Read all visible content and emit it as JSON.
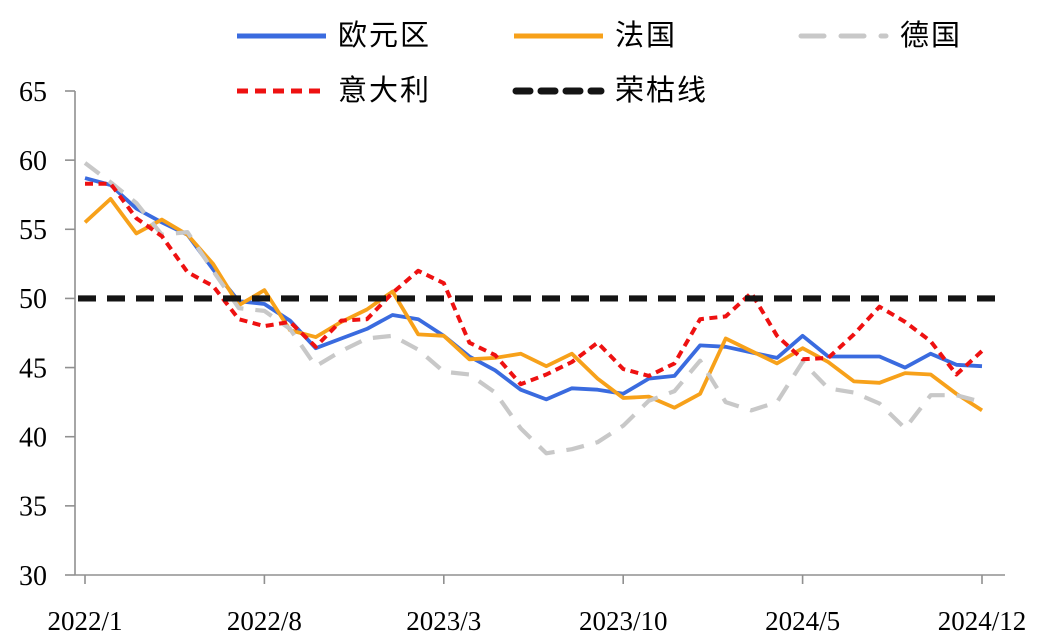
{
  "figure": {
    "background": "#ffffff",
    "axis_color": "#909090",
    "text_color": "#000000"
  },
  "chart_data": {
    "type": "line",
    "title": "",
    "xlabel": "",
    "ylabel": "",
    "grid": false,
    "legend_position": "top",
    "ylim": [
      30,
      65
    ],
    "y_ticks": [
      30,
      35,
      40,
      45,
      50,
      55,
      60,
      65
    ],
    "x_tick_labels": [
      "2022/1",
      "2022/8",
      "2023/3",
      "2023/10",
      "2024/5",
      "2024/12"
    ],
    "x_tick_month_indices": [
      0,
      7,
      14,
      21,
      28,
      35
    ],
    "x_months": [
      "2022/1",
      "2022/2",
      "2022/3",
      "2022/4",
      "2022/5",
      "2022/6",
      "2022/7",
      "2022/8",
      "2022/9",
      "2022/10",
      "2022/11",
      "2022/12",
      "2023/1",
      "2023/2",
      "2023/3",
      "2023/4",
      "2023/5",
      "2023/6",
      "2023/7",
      "2023/8",
      "2023/9",
      "2023/10",
      "2023/11",
      "2023/12",
      "2024/1",
      "2024/2",
      "2024/3",
      "2024/4",
      "2024/5",
      "2024/6",
      "2024/7",
      "2024/8",
      "2024/9",
      "2024/10",
      "2024/11",
      "2024/12"
    ],
    "series": [
      {
        "id": "eurozone",
        "name": "欧元区",
        "color": "#3A6BDF",
        "line_style": "solid",
        "values": [
          58.7,
          58.2,
          56.5,
          55.5,
          54.6,
          52.1,
          49.8,
          49.6,
          48.4,
          46.4,
          47.1,
          47.8,
          48.8,
          48.5,
          47.3,
          45.8,
          44.8,
          43.4,
          42.7,
          43.5,
          43.4,
          43.1,
          44.2,
          44.4,
          46.6,
          46.5,
          46.1,
          45.7,
          47.3,
          45.8,
          45.8,
          45.8,
          45.0,
          46.0,
          45.2,
          45.1
        ]
      },
      {
        "id": "france",
        "name": "法国",
        "color": "#F7A11A",
        "line_style": "solid",
        "values": [
          55.5,
          57.2,
          54.7,
          55.7,
          54.6,
          52.5,
          49.5,
          50.6,
          47.7,
          47.2,
          48.3,
          49.2,
          50.5,
          47.4,
          47.3,
          45.6,
          45.7,
          46.0,
          45.1,
          46.0,
          44.2,
          42.8,
          42.9,
          42.1,
          43.1,
          47.1,
          46.2,
          45.3,
          46.4,
          45.4,
          44.0,
          43.9,
          44.6,
          44.5,
          43.1,
          41.9
        ]
      },
      {
        "id": "germany",
        "name": "德国",
        "color": "#C8C8C8",
        "line_style": "long-dash",
        "values": [
          59.8,
          58.4,
          56.9,
          54.6,
          54.8,
          52.0,
          49.3,
          49.1,
          47.8,
          45.1,
          46.2,
          47.1,
          47.3,
          46.3,
          44.7,
          44.5,
          43.2,
          40.6,
          38.8,
          39.1,
          39.6,
          40.8,
          42.6,
          43.3,
          45.5,
          42.5,
          41.9,
          42.5,
          45.4,
          43.5,
          43.2,
          42.4,
          40.6,
          43.0,
          43.0,
          42.5
        ]
      },
      {
        "id": "italy",
        "name": "意大利",
        "color": "#EE1111",
        "line_style": "short-dash",
        "values": [
          58.3,
          58.3,
          55.8,
          54.5,
          51.9,
          50.9,
          48.5,
          48.0,
          48.3,
          46.5,
          48.4,
          48.5,
          50.4,
          52.0,
          51.1,
          46.8,
          45.9,
          43.8,
          44.5,
          45.4,
          46.8,
          44.9,
          44.4,
          45.3,
          48.5,
          48.7,
          50.4,
          47.3,
          45.6,
          45.7,
          47.4,
          49.4,
          48.3,
          46.9,
          44.5,
          46.2
        ]
      }
    ],
    "refline": {
      "id": "boom-bust-line",
      "name": "荣枯线",
      "value": 50,
      "color": "#141414",
      "line_style": "dash"
    }
  }
}
